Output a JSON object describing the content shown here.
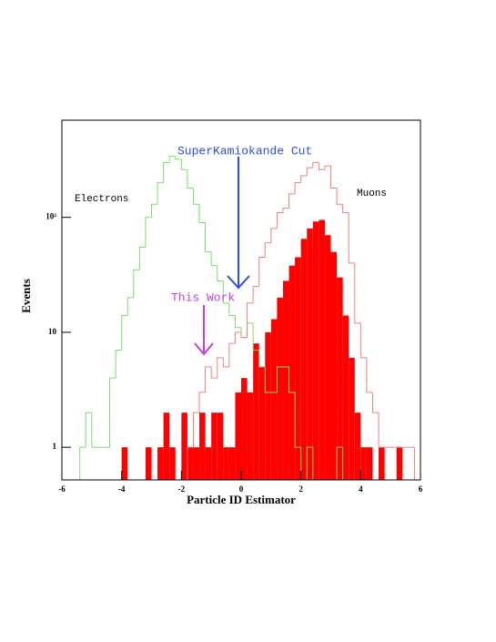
{
  "chart_data": {
    "type": "histogram",
    "xlabel": "Particle ID Estimator",
    "ylabel": "Events",
    "bins": [
      -6,
      -5.8,
      -5.6,
      -5.4,
      -5.2,
      -5,
      -4.8,
      -4.6,
      -4.4,
      -4.2,
      -4,
      -3.8,
      -3.6,
      -3.4,
      -3.2,
      -3,
      -2.8,
      -2.6,
      -2.4,
      -2.2,
      -2,
      -1.8,
      -1.6,
      -1.4,
      -1.2,
      -1,
      -0.8,
      -0.6,
      -0.4,
      -0.2,
      0,
      0.2,
      0.4,
      0.6,
      0.8,
      1,
      1.2,
      1.4,
      1.6,
      1.8,
      2,
      2.2,
      2.4,
      2.6,
      2.8,
      3,
      3.2,
      3.4,
      3.6,
      3.8,
      4,
      4.2,
      4.4,
      4.6,
      4.8,
      5,
      5.2,
      5.4,
      5.6,
      5.8,
      6
    ],
    "series": [
      {
        "name": "Electrons",
        "color": "#7ddc6e",
        "fill": false,
        "values": [
          0,
          0,
          0,
          1,
          2,
          1,
          1,
          1,
          4,
          7,
          14,
          20,
          35,
          55,
          100,
          130,
          200,
          300,
          340,
          320,
          260,
          180,
          130,
          90,
          50,
          38,
          28,
          18,
          14,
          11,
          9,
          12,
          7,
          5,
          3,
          3,
          5,
          5,
          3,
          1,
          0,
          1,
          0,
          0,
          0,
          0,
          1,
          0,
          0,
          0,
          0,
          0,
          0,
          0,
          0,
          0,
          0,
          0,
          0,
          0
        ]
      },
      {
        "name": "Muons",
        "color": "#f08080",
        "fill": false,
        "values": [
          0,
          0,
          0,
          0,
          0,
          0,
          0,
          0,
          0,
          0,
          0,
          0,
          0,
          0,
          0,
          0,
          0,
          0,
          0,
          0,
          0,
          1,
          2,
          3,
          5,
          4,
          6,
          5,
          8,
          10,
          9,
          18,
          25,
          45,
          60,
          80,
          110,
          120,
          160,
          200,
          230,
          270,
          300,
          260,
          280,
          180,
          130,
          110,
          40,
          12,
          6,
          3,
          2,
          1,
          1,
          1,
          1,
          1,
          1,
          0
        ]
      },
      {
        "color": "#ff0000",
        "fill": true,
        "values": [
          0,
          0,
          0,
          0,
          0,
          0,
          0,
          0,
          0,
          0,
          1,
          0,
          0,
          0,
          1,
          0,
          1,
          2,
          1,
          0,
          2,
          1,
          1,
          2,
          1,
          2,
          2,
          1,
          1,
          3,
          4,
          3,
          8,
          5,
          10,
          13,
          20,
          28,
          38,
          45,
          65,
          80,
          92,
          95,
          70,
          50,
          30,
          14,
          6,
          2,
          1,
          1,
          0,
          1,
          0,
          0,
          1,
          0,
          0,
          0
        ]
      }
    ],
    "annotations": [
      "Electrons",
      "Muons",
      "SuperKamiokande Cut",
      "This Work"
    ],
    "xlim": [
      -6,
      6
    ],
    "xticks": [
      -6,
      -4,
      -2,
      0,
      2,
      4,
      6
    ],
    "ylim": [
      0.52,
      700
    ],
    "yticks": [
      1,
      10,
      {
        "value": 100,
        "label": "10²"
      }
    ],
    "log_y": true
  }
}
